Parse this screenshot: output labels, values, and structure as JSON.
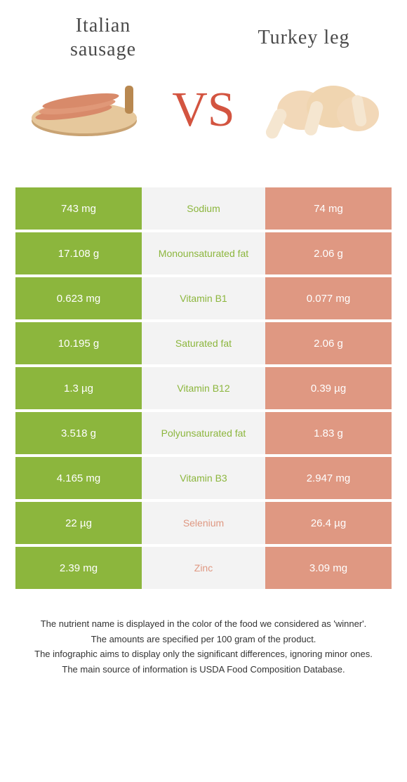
{
  "header": {
    "left_title_line1": "Italian",
    "left_title_line2": "sausage",
    "right_title": "Turkey leg",
    "vs": "VS"
  },
  "colors": {
    "left": "#8cb63d",
    "right": "#df9882",
    "middle_bg": "#f3f3f3",
    "vs": "#d35440"
  },
  "rows": [
    {
      "left": "743 mg",
      "label": "Sodium",
      "right": "74 mg",
      "winner": "left"
    },
    {
      "left": "17.108 g",
      "label": "Monounsaturated fat",
      "right": "2.06 g",
      "winner": "left"
    },
    {
      "left": "0.623 mg",
      "label": "Vitamin B1",
      "right": "0.077 mg",
      "winner": "left"
    },
    {
      "left": "10.195 g",
      "label": "Saturated fat",
      "right": "2.06 g",
      "winner": "left"
    },
    {
      "left": "1.3 µg",
      "label": "Vitamin B12",
      "right": "0.39 µg",
      "winner": "left"
    },
    {
      "left": "3.518 g",
      "label": "Polyunsaturated fat",
      "right": "1.83 g",
      "winner": "left"
    },
    {
      "left": "4.165 mg",
      "label": "Vitamin B3",
      "right": "2.947 mg",
      "winner": "left"
    },
    {
      "left": "22 µg",
      "label": "Selenium",
      "right": "26.4 µg",
      "winner": "right"
    },
    {
      "left": "2.39 mg",
      "label": "Zinc",
      "right": "3.09 mg",
      "winner": "right"
    }
  ],
  "footer": {
    "line1": "The nutrient name is displayed in the color of the food we considered as 'winner'.",
    "line2": "The amounts are specified per 100 gram of the product.",
    "line3": "The infographic aims to display only the significant differences, ignoring minor ones.",
    "line4": "The main source of information is USDA Food Composition Database."
  }
}
